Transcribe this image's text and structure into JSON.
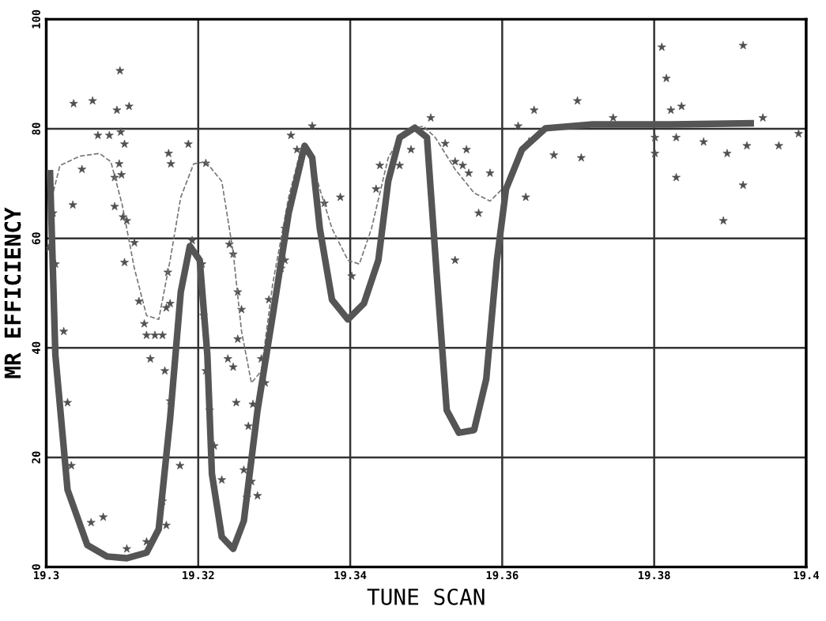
{
  "chart_data": {
    "type": "scatter",
    "xlabel": "TUNE SCAN",
    "ylabel": "MR EFFICIENCY",
    "xlim": [
      19.3,
      19.4
    ],
    "xticks": [
      19.3,
      19.32,
      19.34,
      19.36,
      19.38,
      19.4
    ],
    "ylim": [
      0,
      100
    ],
    "yticks": [
      0,
      20,
      40,
      60,
      80,
      100
    ],
    "grid": true,
    "marker": "star",
    "series": [
      {
        "color": "#505050",
        "x": [
          19.3036,
          19.3061,
          19.3097,
          19.3109,
          19.3093,
          19.3098,
          19.3068,
          19.3083,
          19.3103,
          19.3047,
          19.3096,
          19.3099,
          19.309,
          19.3161,
          19.3164,
          19.3187,
          19.321,
          19.3035,
          19.3009,
          19.3003,
          19.3101,
          19.309,
          19.3106,
          19.3103,
          19.3116,
          19.3122,
          19.3129,
          19.3132,
          19.3143,
          19.3153,
          19.3158,
          19.316,
          19.3163,
          19.3137,
          19.3156,
          19.3163,
          19.3192,
          19.3205,
          19.3207,
          19.321,
          19.3215,
          19.3221,
          19.3231,
          19.3239,
          19.3246,
          19.3252,
          19.3246,
          19.3241,
          19.325,
          19.326,
          19.327,
          19.3278,
          19.3264,
          19.3266,
          19.3272,
          19.3288,
          19.3283,
          19.3293,
          19.3309,
          19.3314,
          19.333,
          19.3322,
          19.335,
          19.3314,
          19.3366,
          19.3387,
          19.3402,
          19.3434,
          19.3439,
          19.3465,
          19.348,
          19.3506,
          19.3525,
          19.3538,
          19.3553,
          19.3548,
          19.3556,
          19.3569,
          19.3538,
          19.3584,
          19.3621,
          19.3642,
          19.3631,
          19.3668,
          19.3699,
          19.3704,
          19.3746,
          19.3801,
          19.3801,
          19.381,
          19.3816,
          19.3822,
          19.3829,
          19.3829,
          19.3836,
          19.3865,
          19.3891,
          19.3896,
          19.3917,
          19.3922,
          19.3917,
          19.3943,
          19.3964,
          19.399,
          19.3012,
          19.3023,
          19.3028,
          19.3033,
          19.3059,
          19.3075,
          19.3106,
          19.3132,
          19.3153,
          19.3158,
          19.3176,
          19.3252,
          19.3257
        ],
        "values": [
          84.6,
          85.1,
          90.6,
          84.1,
          83.4,
          79.4,
          78.8,
          78.8,
          77.2,
          72.6,
          73.6,
          71.6,
          71.1,
          75.5,
          73.6,
          77.2,
          73.7,
          66.1,
          64.6,
          58.2,
          63.9,
          65.8,
          63.2,
          55.6,
          59.2,
          48.5,
          44.4,
          42.3,
          42.3,
          42.3,
          47.3,
          53.8,
          48.1,
          38.0,
          35.8,
          30.3,
          59.6,
          55.3,
          45.9,
          35.8,
          28.6,
          22.1,
          15.9,
          38.0,
          36.5,
          41.6,
          57.1,
          58.9,
          30.0,
          17.7,
          15.6,
          13.0,
          12.7,
          25.7,
          29.7,
          33.6,
          38.0,
          48.8,
          54.5,
          61.8,
          76.2,
          78.8,
          80.5,
          56.0,
          66.4,
          67.5,
          53.1,
          69.0,
          73.3,
          73.3,
          76.2,
          82.0,
          77.3,
          74.0,
          76.2,
          73.3,
          71.9,
          64.6,
          56.0,
          71.9,
          80.5,
          83.4,
          67.5,
          75.2,
          85.1,
          74.7,
          82.0,
          78.4,
          75.5,
          94.9,
          89.2,
          83.4,
          78.4,
          71.1,
          84.1,
          77.6,
          63.2,
          75.5,
          69.7,
          76.9,
          95.2,
          82.0,
          76.9,
          79.1,
          55.3,
          43.0,
          30.0,
          18.5,
          8.1,
          9.1,
          3.3,
          4.6,
          12.0,
          7.6,
          18.5,
          50.2,
          47.0
        ]
      },
      {
        "type": "line",
        "color": "#777777",
        "line_style": "dashed",
        "marker": "none",
        "x": [
          19.3005,
          19.3018,
          19.3044,
          19.307,
          19.3085,
          19.31,
          19.3116,
          19.3132,
          19.3148,
          19.3163,
          19.3177,
          19.3194,
          19.321,
          19.3231,
          19.3246,
          19.3257,
          19.327,
          19.3283,
          19.3298,
          19.3319,
          19.3335,
          19.3347,
          19.336,
          19.3376,
          19.3397,
          19.3412,
          19.3428,
          19.345,
          19.347,
          19.3496,
          19.3512,
          19.3538,
          19.3563,
          19.3584,
          19.3605,
          19.3621,
          19.3636
        ],
        "values": [
          66.1,
          73.3,
          75.0,
          75.5,
          74.0,
          66.1,
          54.5,
          45.9,
          45.2,
          56.0,
          67.5,
          73.6,
          74.0,
          70.4,
          57.4,
          43.0,
          33.6,
          35.8,
          51.7,
          67.5,
          76.2,
          75.5,
          69.0,
          61.8,
          56.0,
          55.3,
          61.8,
          74.7,
          79.4,
          80.5,
          78.4,
          72.6,
          68.3,
          66.8,
          69.7,
          75.5,
          78.4
        ]
      },
      {
        "type": "line",
        "color": "#555555",
        "line_style": "solid",
        "marker": "none",
        "x": [
          19.3005,
          19.3012,
          19.3028,
          19.3054,
          19.308,
          19.3106,
          19.3132,
          19.3148,
          19.3163,
          19.3177,
          19.3189,
          19.3202,
          19.3212,
          19.3218,
          19.3231,
          19.3246,
          19.326,
          19.3278,
          19.3298,
          19.3319,
          19.334,
          19.335,
          19.336,
          19.3376,
          19.3397,
          19.3418,
          19.3437,
          19.345,
          19.3465,
          19.3485,
          19.3501,
          19.3514,
          19.3527,
          19.3543,
          19.3563,
          19.3579,
          19.3593,
          19.3605,
          19.3626,
          19.3657,
          19.3719,
          19.3823,
          19.3927
        ],
        "values": [
          71.9,
          38.7,
          14.1,
          4.0,
          1.9,
          1.6,
          2.6,
          6.9,
          27.1,
          50.2,
          58.6,
          56.0,
          38.7,
          17.0,
          5.5,
          3.3,
          8.4,
          28.6,
          45.9,
          64.6,
          76.9,
          74.7,
          61.8,
          48.8,
          45.2,
          48.1,
          56.0,
          70.4,
          78.4,
          80.2,
          78.4,
          53.1,
          28.6,
          24.5,
          25.0,
          34.3,
          56.0,
          69.0,
          76.2,
          80.1,
          80.8,
          80.8,
          81.0
        ]
      }
    ]
  }
}
